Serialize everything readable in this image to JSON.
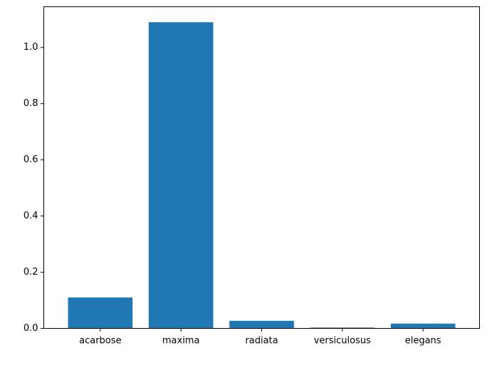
{
  "chart_data": {
    "type": "bar",
    "title": "",
    "xlabel": "",
    "ylabel": "",
    "categories": [
      "acarbose",
      "maxima",
      "radiata",
      "versiculosus",
      "elegans"
    ],
    "values": [
      0.11,
      1.09,
      0.027,
      0.003,
      0.017
    ],
    "ylim": [
      0,
      1.145
    ],
    "yticks": [
      0.0,
      0.2,
      0.4,
      0.6,
      0.8,
      1.0
    ],
    "ytick_labels": [
      "0.0",
      "0.2",
      "0.4",
      "0.6",
      "0.8",
      "1.0"
    ],
    "grid": false,
    "legend": "none",
    "bar_color": "#1f77b4"
  }
}
